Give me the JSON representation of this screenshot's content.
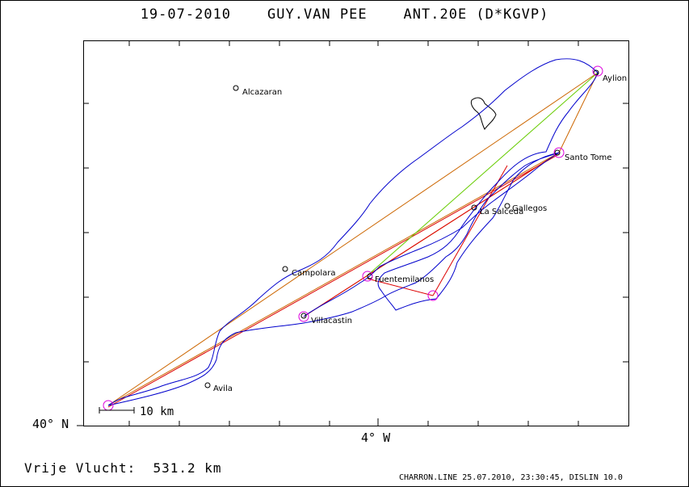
{
  "header": {
    "date": "19-07-2010",
    "pilot": "GUY.VAN PEE",
    "glider": "ANT.20E (D*KGVP)"
  },
  "axes": {
    "lat_label": "40° N",
    "lon_label": "4° W"
  },
  "scale_bar": {
    "label": "10 km"
  },
  "summary": {
    "label": "Vrije Vlucht:",
    "distance": "531.2 km"
  },
  "footer": "CHARRON.LINE 25.07.2010, 23:30:45, DISLIN 10.0",
  "places": [
    {
      "name": "Alcazaran"
    },
    {
      "name": "Aylion"
    },
    {
      "name": "Santo Tome"
    },
    {
      "name": "Gallegos"
    },
    {
      "name": "La Salceda"
    },
    {
      "name": "Campolara"
    },
    {
      "name": "Fuentemilanos"
    },
    {
      "name": "Villacastin"
    },
    {
      "name": "Avila"
    }
  ],
  "colors": {
    "track": "#0000cc",
    "route_orange": "#cc6600",
    "route_red": "#dd0000",
    "route_green": "#66cc00",
    "turnpoint": "#dd00dd"
  }
}
